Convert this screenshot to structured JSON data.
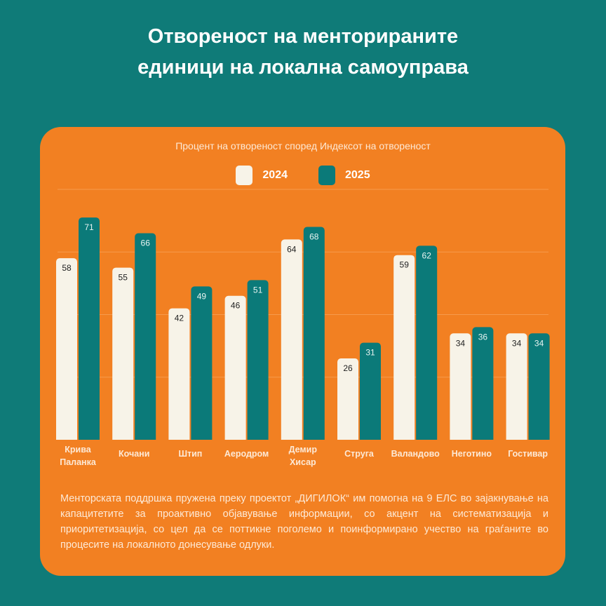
{
  "header": {
    "title_line1": "Отвореност на менторираните",
    "title_line2": "единици на локална самоуправа"
  },
  "colors": {
    "background": "#0f7b78",
    "card": "#f28022",
    "series_2024": "#f7f3e8",
    "series_2025": "#0b7a79"
  },
  "chart_data": {
    "type": "bar",
    "title": "Процент на отвореност според Индексот на отвореност",
    "categories": [
      [
        "Крива",
        "Паланка"
      ],
      [
        "Кочани"
      ],
      [
        "Штип"
      ],
      [
        "Аеродром"
      ],
      [
        "Демир",
        "Хисар"
      ],
      [
        "Струга"
      ],
      [
        "Валандово"
      ],
      [
        "Неготино"
      ],
      [
        "Гостивар"
      ]
    ],
    "series": [
      {
        "name": "2024",
        "values": [
          58,
          55,
          42,
          46,
          64,
          26,
          59,
          34,
          34
        ]
      },
      {
        "name": "2025",
        "values": [
          71,
          66,
          49,
          51,
          68,
          31,
          62,
          36,
          34
        ]
      }
    ],
    "ylim": [
      0,
      80
    ],
    "gridlines": [
      20,
      40,
      60,
      80
    ],
    "legend": "top-center",
    "xlabel": "",
    "ylabel": ""
  },
  "footer": {
    "text": "Менторската поддршка пружена преку проектот „ДИГИЛОК“ им помогна на 9 ЕЛС во зајакнување на капацитетите за проактивно објавување информации, со акцент на систематизација и приоритетизација, со цел да се поттикне поголемо и поинформирано учество на граѓаните во процесите на локалното донесување одлуки."
  }
}
